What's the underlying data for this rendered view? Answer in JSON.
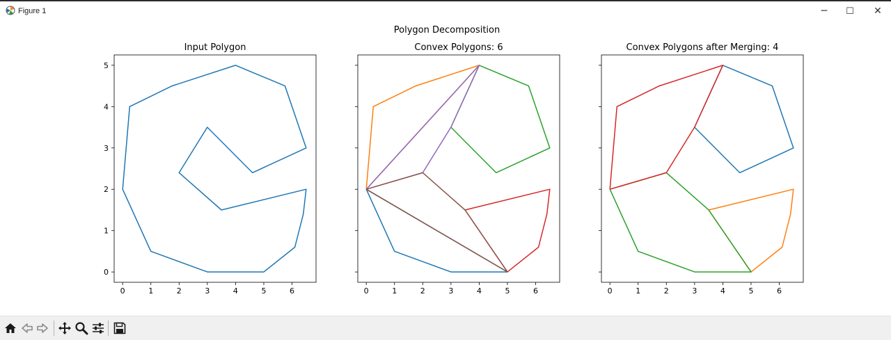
{
  "window": {
    "title": "Figure 1",
    "minimize_label": "─",
    "maximize_label": "☐",
    "close_label": "✕"
  },
  "figure": {
    "suptitle": "Polygon Decomposition"
  },
  "toolbar": {
    "buttons": [
      "home-icon",
      "back-arrow-icon",
      "forward-arrow-icon",
      "pan-icon",
      "zoom-icon",
      "configure-subplots-icon",
      "save-icon"
    ]
  },
  "colors": {
    "C0": "#1f77b4",
    "C1": "#ff7f0e",
    "C2": "#2ca02c",
    "C3": "#d62728",
    "C4": "#9467bd",
    "C5": "#8c564b"
  },
  "chart_data": [
    {
      "type": "line",
      "title": "Input Polygon",
      "xlim": [
        -0.3,
        6.85
      ],
      "ylim": [
        -0.25,
        5.25
      ],
      "xticks": [
        0,
        1,
        2,
        3,
        4,
        5,
        6
      ],
      "yticks": [
        0,
        1,
        2,
        3,
        4,
        5
      ],
      "show_ytick_labels": true,
      "series": [
        {
          "color": "C0",
          "points": [
            [
              0,
              2
            ],
            [
              0.25,
              4
            ],
            [
              1.75,
              4.5
            ],
            [
              4,
              5
            ],
            [
              5.75,
              4.5
            ],
            [
              6.5,
              3
            ],
            [
              4.6,
              2.4
            ],
            [
              3,
              3.5
            ],
            [
              2,
              2.4
            ],
            [
              3.5,
              1.5
            ],
            [
              6.5,
              2
            ],
            [
              6.4,
              1.4
            ],
            [
              6.1,
              0.6
            ],
            [
              5,
              0
            ],
            [
              3,
              0
            ],
            [
              1,
              0.5
            ],
            [
              0,
              2
            ]
          ]
        }
      ]
    },
    {
      "type": "line",
      "title": "Convex Polygons: 6",
      "xlim": [
        -0.3,
        6.85
      ],
      "ylim": [
        -0.25,
        5.25
      ],
      "xticks": [
        0,
        1,
        2,
        3,
        4,
        5,
        6
      ],
      "yticks": [
        0,
        1,
        2,
        3,
        4,
        5
      ],
      "show_ytick_labels": false,
      "series": [
        {
          "color": "C0",
          "points": [
            [
              0,
              2
            ],
            [
              1,
              0.5
            ],
            [
              3,
              0
            ],
            [
              5,
              0
            ],
            [
              0,
              2
            ]
          ]
        },
        {
          "color": "C1",
          "points": [
            [
              0,
              2
            ],
            [
              0.25,
              4
            ],
            [
              1.75,
              4.5
            ],
            [
              4,
              5
            ],
            [
              0,
              2
            ]
          ]
        },
        {
          "color": "C2",
          "points": [
            [
              4,
              5
            ],
            [
              5.75,
              4.5
            ],
            [
              6.5,
              3
            ],
            [
              4.6,
              2.4
            ],
            [
              3,
              3.5
            ],
            [
              4,
              5
            ]
          ]
        },
        {
          "color": "C3",
          "points": [
            [
              3.5,
              1.5
            ],
            [
              6.5,
              2
            ],
            [
              6.4,
              1.4
            ],
            [
              6.1,
              0.6
            ],
            [
              5,
              0
            ],
            [
              3.5,
              1.5
            ]
          ]
        },
        {
          "color": "C4",
          "points": [
            [
              0,
              2
            ],
            [
              4,
              5
            ],
            [
              3,
              3.5
            ],
            [
              2,
              2.4
            ],
            [
              0,
              2
            ]
          ]
        },
        {
          "color": "C5",
          "points": [
            [
              0,
              2
            ],
            [
              2,
              2.4
            ],
            [
              3.5,
              1.5
            ],
            [
              5,
              0
            ],
            [
              0,
              2
            ]
          ]
        }
      ]
    },
    {
      "type": "line",
      "title": "Convex Polygons after Merging: 4",
      "xlim": [
        -0.3,
        6.85
      ],
      "ylim": [
        -0.25,
        5.25
      ],
      "xticks": [
        0,
        1,
        2,
        3,
        4,
        5,
        6
      ],
      "yticks": [
        0,
        1,
        2,
        3,
        4,
        5
      ],
      "show_ytick_labels": false,
      "series": [
        {
          "color": "C0",
          "points": [
            [
              4,
              5
            ],
            [
              5.75,
              4.5
            ],
            [
              6.5,
              3
            ],
            [
              4.6,
              2.4
            ],
            [
              3,
              3.5
            ],
            [
              4,
              5
            ]
          ]
        },
        {
          "color": "C1",
          "points": [
            [
              3.5,
              1.5
            ],
            [
              6.5,
              2
            ],
            [
              6.4,
              1.4
            ],
            [
              6.1,
              0.6
            ],
            [
              5,
              0
            ],
            [
              3.5,
              1.5
            ]
          ]
        },
        {
          "color": "C2",
          "points": [
            [
              0,
              2
            ],
            [
              1,
              0.5
            ],
            [
              3,
              0
            ],
            [
              5,
              0
            ],
            [
              3.5,
              1.5
            ],
            [
              2,
              2.4
            ],
            [
              0,
              2
            ]
          ]
        },
        {
          "color": "C3",
          "points": [
            [
              0,
              2
            ],
            [
              0.25,
              4
            ],
            [
              1.75,
              4.5
            ],
            [
              4,
              5
            ],
            [
              3,
              3.5
            ],
            [
              2,
              2.4
            ],
            [
              0,
              2
            ]
          ]
        }
      ]
    }
  ]
}
